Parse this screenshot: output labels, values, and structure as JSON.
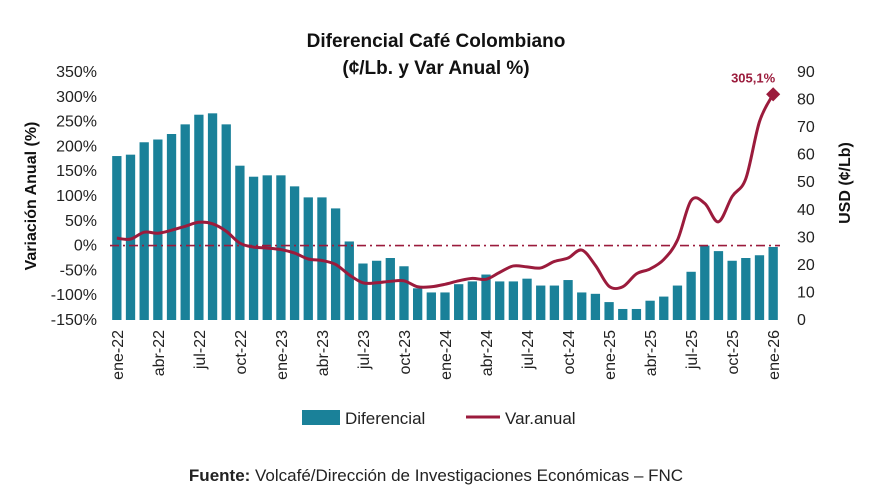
{
  "chart_data": {
    "type": "bar+line",
    "title_line1": "Diferencial Café Colombiano",
    "title_line2": "(¢/Lb. y Var Anual %)",
    "ylabel_left": "Variación Anual (%)",
    "ylabel_right": "USD (¢/Lb)",
    "left_ticks": [
      "350%",
      "300%",
      "250%",
      "200%",
      "150%",
      "100%",
      "50%",
      "0%",
      "-50%",
      "-100%",
      "-150%"
    ],
    "left_ylim": [
      -150,
      350
    ],
    "right_ticks": [
      "90",
      "80",
      "70",
      "60",
      "50",
      "40",
      "30",
      "20",
      "10",
      "0"
    ],
    "right_ylim": [
      0,
      90
    ],
    "x_tick_labels": [
      "ene-22",
      "abr-22",
      "jul-22",
      "oct-22",
      "ene-23",
      "abr-23",
      "jul-23",
      "oct-23",
      "ene-24",
      "abr-24",
      "jul-24",
      "oct-24",
      "ene-25",
      "abr-25",
      "jul-25",
      "oct-25",
      "ene-26"
    ],
    "x": [
      "ene-22",
      "feb-22",
      "mar-22",
      "abr-22",
      "may-22",
      "jun-22",
      "jul-22",
      "ago-22",
      "sep-22",
      "oct-22",
      "nov-22",
      "dic-22",
      "ene-23",
      "feb-23",
      "mar-23",
      "abr-23",
      "may-23",
      "jun-23",
      "jul-23",
      "ago-23",
      "sep-23",
      "oct-23",
      "nov-23",
      "dic-23",
      "ene-24",
      "feb-24",
      "mar-24",
      "abr-24",
      "may-24",
      "jun-24",
      "jul-24",
      "ago-24",
      "sep-24",
      "oct-24",
      "nov-24",
      "dic-24",
      "ene-25",
      "feb-25",
      "mar-25",
      "abr-25",
      "may-25",
      "jun-25",
      "jul-25",
      "ago-25",
      "sep-25",
      "oct-25",
      "nov-25",
      "dic-25",
      "ene-26"
    ],
    "series": [
      {
        "name": "Diferencial",
        "kind": "bar",
        "axis": "right",
        "color": "#1a8199",
        "values": [
          59.5,
          60,
          64.5,
          65.5,
          67.5,
          71,
          74.5,
          75,
          71,
          56,
          52,
          52.5,
          52.5,
          48.5,
          44.5,
          44.5,
          40.5,
          28.5,
          20.5,
          21.5,
          22.5,
          19.5,
          11.5,
          10,
          10,
          13,
          14,
          16.5,
          14,
          14,
          15,
          12.5,
          12.5,
          14.5,
          10,
          9.5,
          6.5,
          4,
          4,
          7,
          8.5,
          12.5,
          17.5,
          27,
          25,
          21.5,
          22.5,
          23.5,
          26.5
        ]
      },
      {
        "name": "Var.anual",
        "kind": "line",
        "axis": "left",
        "color": "#9b1b3c",
        "values": [
          15,
          13,
          27,
          25,
          31,
          39,
          47,
          44,
          29,
          5,
          -3,
          -5,
          -8,
          -15,
          -27,
          -30,
          -38,
          -59,
          -75,
          -75,
          -72,
          -71,
          -83,
          -83,
          -78,
          -71,
          -66,
          -68,
          -54,
          -41,
          -43,
          -45,
          -32,
          -25,
          -9,
          -40,
          -82,
          -83,
          -57,
          -47,
          -28,
          11,
          91,
          85,
          48,
          99,
          135,
          250,
          305.1
        ]
      }
    ],
    "reference_line": {
      "axis": "left",
      "value": 0,
      "color": "#9b1b3c",
      "style": "dash-dot"
    },
    "annotation": {
      "text": "305,1%",
      "color": "#9b1b3c"
    },
    "legend": {
      "placement": "bottom",
      "items": [
        "Diferencial",
        "Var.anual"
      ]
    },
    "grid": false
  },
  "source": {
    "label": "Fuente:",
    "text": " Volcafé/Dirección de Investigaciones Económicas – FNC"
  }
}
